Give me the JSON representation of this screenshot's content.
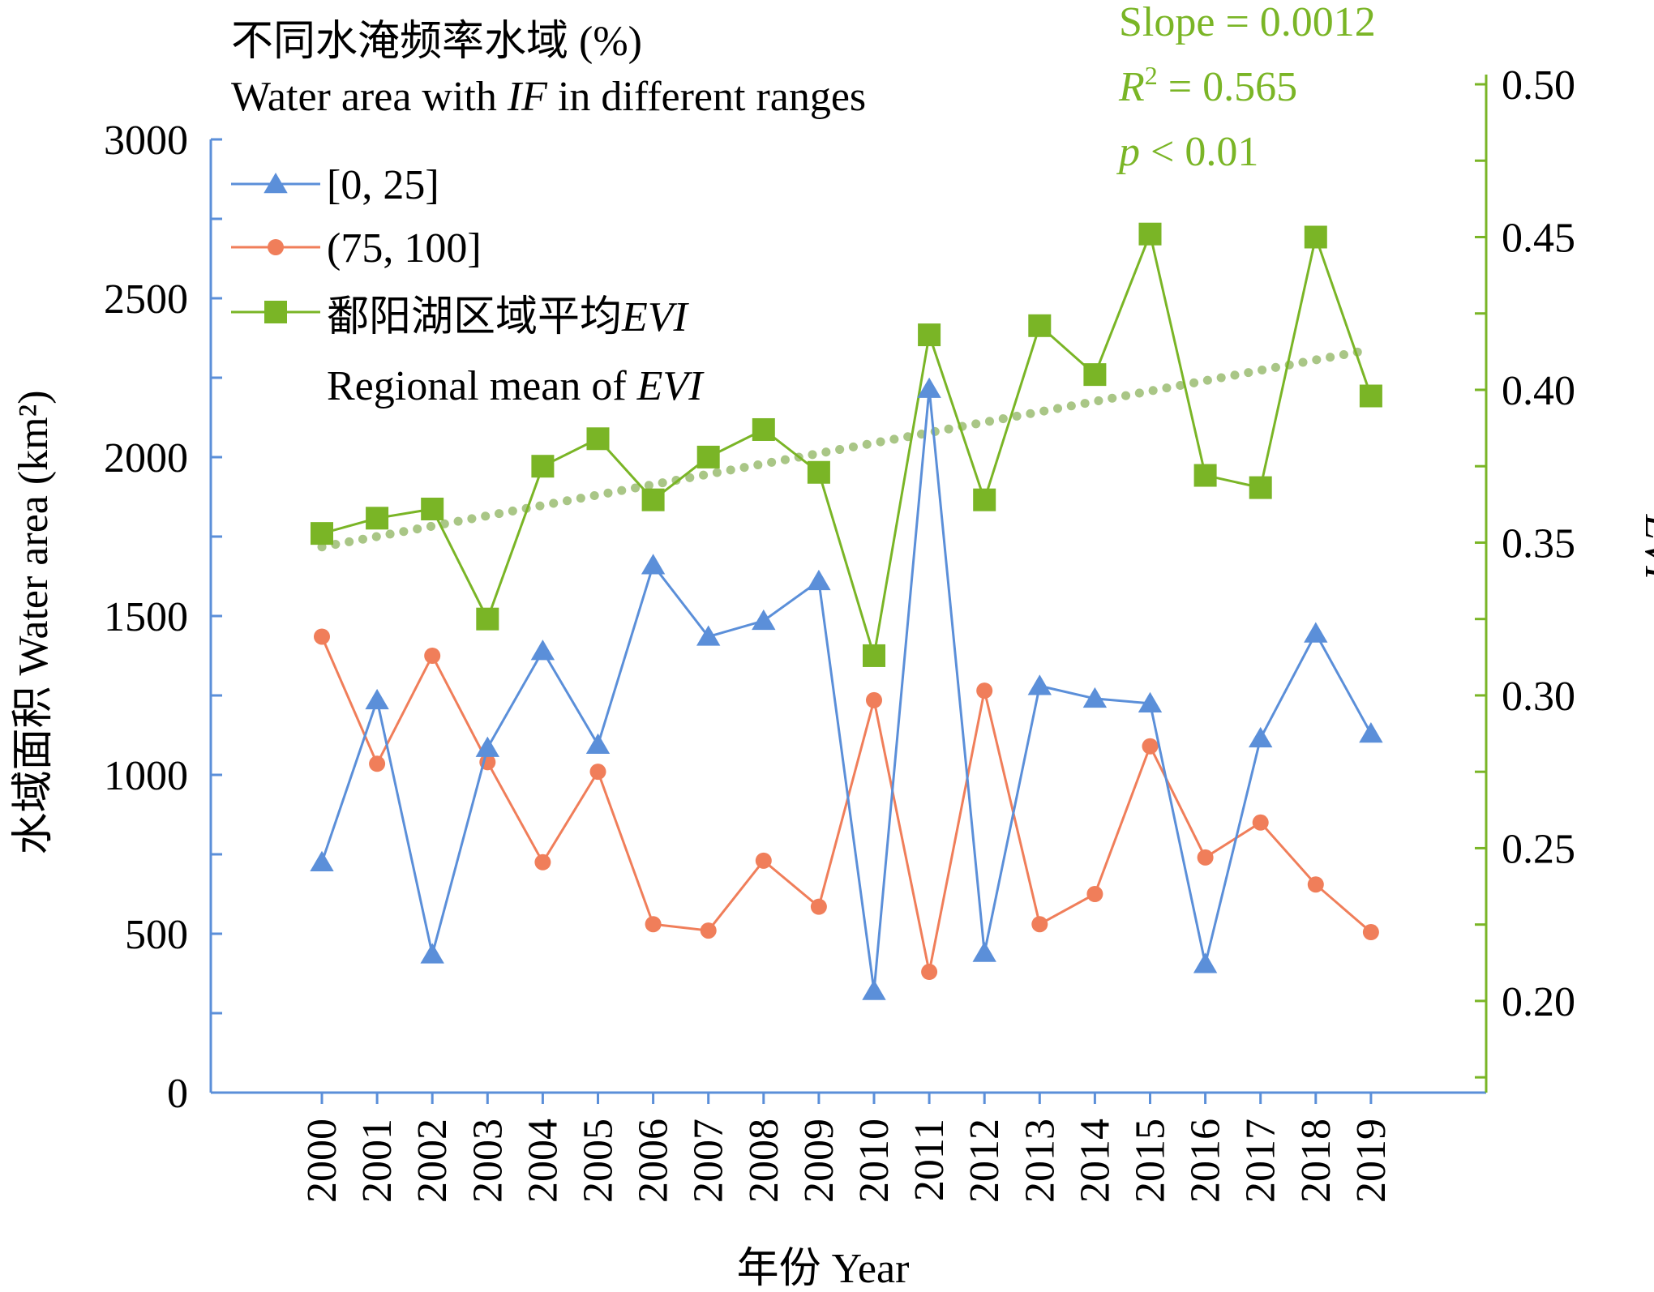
{
  "chart_data": {
    "type": "line",
    "x": [
      "2000",
      "2001",
      "2002",
      "2003",
      "2004",
      "2005",
      "2006",
      "2007",
      "2008",
      "2009",
      "2010",
      "2011",
      "2012",
      "2013",
      "2014",
      "2015",
      "2016",
      "2017",
      "2018",
      "2019"
    ],
    "series": [
      {
        "name": "[0, 25]",
        "axis": "left",
        "color": "#5b8fd9",
        "marker": "triangle",
        "values": [
          725,
          1235,
          435,
          1085,
          1390,
          1095,
          1660,
          1435,
          1485,
          1610,
          320,
          2215,
          440,
          1280,
          1240,
          1225,
          405,
          1115,
          1445,
          1130
        ]
      },
      {
        "name": "(75, 100]",
        "axis": "left",
        "color": "#f07e5a",
        "marker": "circle",
        "values": [
          1435,
          1035,
          1375,
          1040,
          725,
          1010,
          530,
          510,
          730,
          585,
          1235,
          380,
          1265,
          530,
          625,
          1090,
          740,
          850,
          655,
          505
        ]
      },
      {
        "name": "鄱阳湖区域平均EVI",
        "name_plain": "鄱阳湖区域平均",
        "name_italic": "EVI",
        "axis": "right",
        "color": "#7ab526",
        "marker": "square",
        "values": [
          0.353,
          0.358,
          0.361,
          0.325,
          0.375,
          0.384,
          0.364,
          0.378,
          0.387,
          0.373,
          0.313,
          0.418,
          0.364,
          0.421,
          0.405,
          0.451,
          0.372,
          0.368,
          0.45,
          0.398
        ]
      }
    ],
    "trendline": {
      "of": "鄱阳湖区域平均EVI",
      "slope": 0.0012,
      "color": "#a0c07a"
    },
    "y_left": {
      "label": "水域面积 Water area (km²)",
      "ylim": [
        0,
        3000
      ],
      "ticks": [
        0,
        500,
        1000,
        1500,
        2000,
        2500,
        3000
      ],
      "tick_labels": [
        "0",
        "500",
        "1000",
        "1500",
        "2000",
        "2500",
        "3000"
      ],
      "color": "#5b8fd9"
    },
    "y_right": {
      "label": "EVI",
      "ylim": [
        0.17,
        0.5
      ],
      "ticks": [
        0.2,
        0.25,
        0.3,
        0.35,
        0.4,
        0.45,
        0.5
      ],
      "tick_labels": [
        "0.20",
        "0.25",
        "0.30",
        "0.35",
        "0.40",
        "0.45",
        "0.50"
      ],
      "color": "#7ab526"
    },
    "xlabel": "年份 Year",
    "legend": {
      "title_cn": "不同水淹频率水域 (%)",
      "title_en_pre": "Water area with ",
      "title_en_ital": "IF",
      "title_en_post": " in different ranges",
      "evi_en_pre": "Regional mean of ",
      "evi_en_ital": "EVI",
      "placement": "top-left"
    },
    "annotation": {
      "slope_text": "Slope = 0.0012",
      "r2_ital": "R",
      "r2_sup": "2",
      "r2_rest": " = 0.565",
      "p_ital": "p",
      "p_rest": " < 0.01",
      "placement": "top-right"
    },
    "grid": false
  }
}
